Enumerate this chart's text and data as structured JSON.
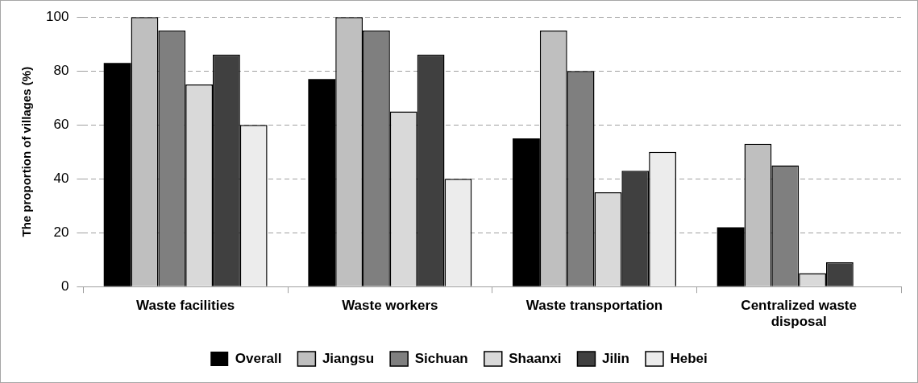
{
  "chart_data": {
    "type": "bar",
    "ylabel": "The proportion of villages (%)",
    "categories": [
      "Waste facilities",
      "Waste workers",
      "Waste transportation",
      "Centralized waste disposal"
    ],
    "series": [
      {
        "name": "Overall",
        "color": "#000000",
        "values": [
          83,
          77,
          55,
          22
        ]
      },
      {
        "name": "Jiangsu",
        "color": "#bfbfbf",
        "values": [
          100,
          100,
          95,
          53
        ]
      },
      {
        "name": "Sichuan",
        "color": "#7f7f7f",
        "values": [
          95,
          95,
          80,
          45
        ]
      },
      {
        "name": "Shaanxi",
        "color": "#d9d9d9",
        "values": [
          75,
          65,
          35,
          5
        ]
      },
      {
        "name": "Jilin",
        "color": "#404040",
        "values": [
          86,
          86,
          43,
          9
        ]
      },
      {
        "name": "Hebei",
        "color": "#ececec",
        "values": [
          60,
          40,
          50,
          0
        ]
      }
    ],
    "ylim": [
      0,
      100
    ],
    "yticks": [
      0,
      20,
      40,
      60,
      80,
      100
    ],
    "grid": "y",
    "legend": "bottom"
  }
}
